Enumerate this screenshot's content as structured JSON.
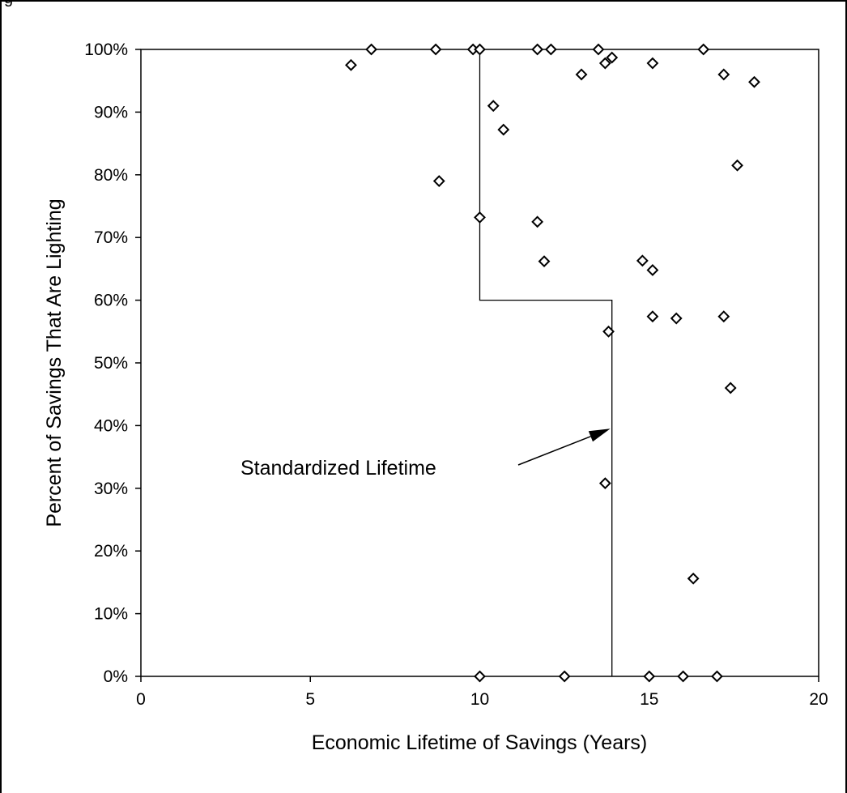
{
  "chart_data": {
    "type": "scatter",
    "title": "",
    "xlabel": "Economic Lifetime of Savings (Years)",
    "ylabel": "Percent of Savings That Are Lighting",
    "xlim": [
      0,
      20
    ],
    "ylim": [
      0,
      1
    ],
    "x_ticks": [
      0,
      5,
      10,
      15,
      20
    ],
    "x_tick_labels": [
      "0",
      "5",
      "10",
      "15",
      "20"
    ],
    "y_ticks": [
      0,
      0.1,
      0.2,
      0.3,
      0.4,
      0.5,
      0.6,
      0.7,
      0.8,
      0.9,
      1.0
    ],
    "y_tick_labels": [
      "0%",
      "10%",
      "20%",
      "30%",
      "40%",
      "50%",
      "60%",
      "70%",
      "80%",
      "90%",
      "100%"
    ],
    "grid": false,
    "legend": "none",
    "marker": "diamond",
    "colors": {
      "marker": "#000000",
      "line": "#000000",
      "frame": "#000000"
    },
    "top_fragment": "g",
    "series": [
      {
        "points": [
          [
            6.2,
            0.975
          ],
          [
            6.8,
            1.0
          ],
          [
            8.7,
            1.0
          ],
          [
            9.8,
            1.0
          ],
          [
            10.0,
            1.0
          ],
          [
            11.7,
            1.0
          ],
          [
            12.1,
            1.0
          ],
          [
            13.5,
            1.0
          ],
          [
            16.6,
            1.0
          ],
          [
            13.7,
            0.978
          ],
          [
            13.9,
            0.987
          ],
          [
            15.1,
            0.978
          ],
          [
            13.0,
            0.96
          ],
          [
            17.2,
            0.96
          ],
          [
            18.1,
            0.948
          ],
          [
            10.4,
            0.91
          ],
          [
            10.7,
            0.872
          ],
          [
            8.8,
            0.79
          ],
          [
            17.6,
            0.815
          ],
          [
            10.0,
            0.732
          ],
          [
            11.7,
            0.725
          ],
          [
            11.9,
            0.662
          ],
          [
            14.8,
            0.663
          ],
          [
            15.1,
            0.648
          ],
          [
            15.1,
            0.574
          ],
          [
            15.8,
            0.571
          ],
          [
            17.2,
            0.574
          ],
          [
            13.8,
            0.55
          ],
          [
            17.4,
            0.46
          ],
          [
            13.7,
            0.308
          ],
          [
            16.3,
            0.156
          ],
          [
            10.0,
            0.0
          ],
          [
            12.5,
            0.0
          ],
          [
            15.0,
            0.0
          ],
          [
            16.0,
            0.0
          ],
          [
            17.0,
            0.0
          ]
        ]
      }
    ],
    "standardized_lifetime_line": [
      [
        10.0,
        1.0
      ],
      [
        10.0,
        0.6
      ],
      [
        13.9,
        0.6
      ],
      [
        13.9,
        0.0
      ]
    ],
    "annotations": [
      {
        "text": "Standardized Lifetime",
        "arrow_to": [
          13.85,
          0.395
        ]
      }
    ]
  }
}
